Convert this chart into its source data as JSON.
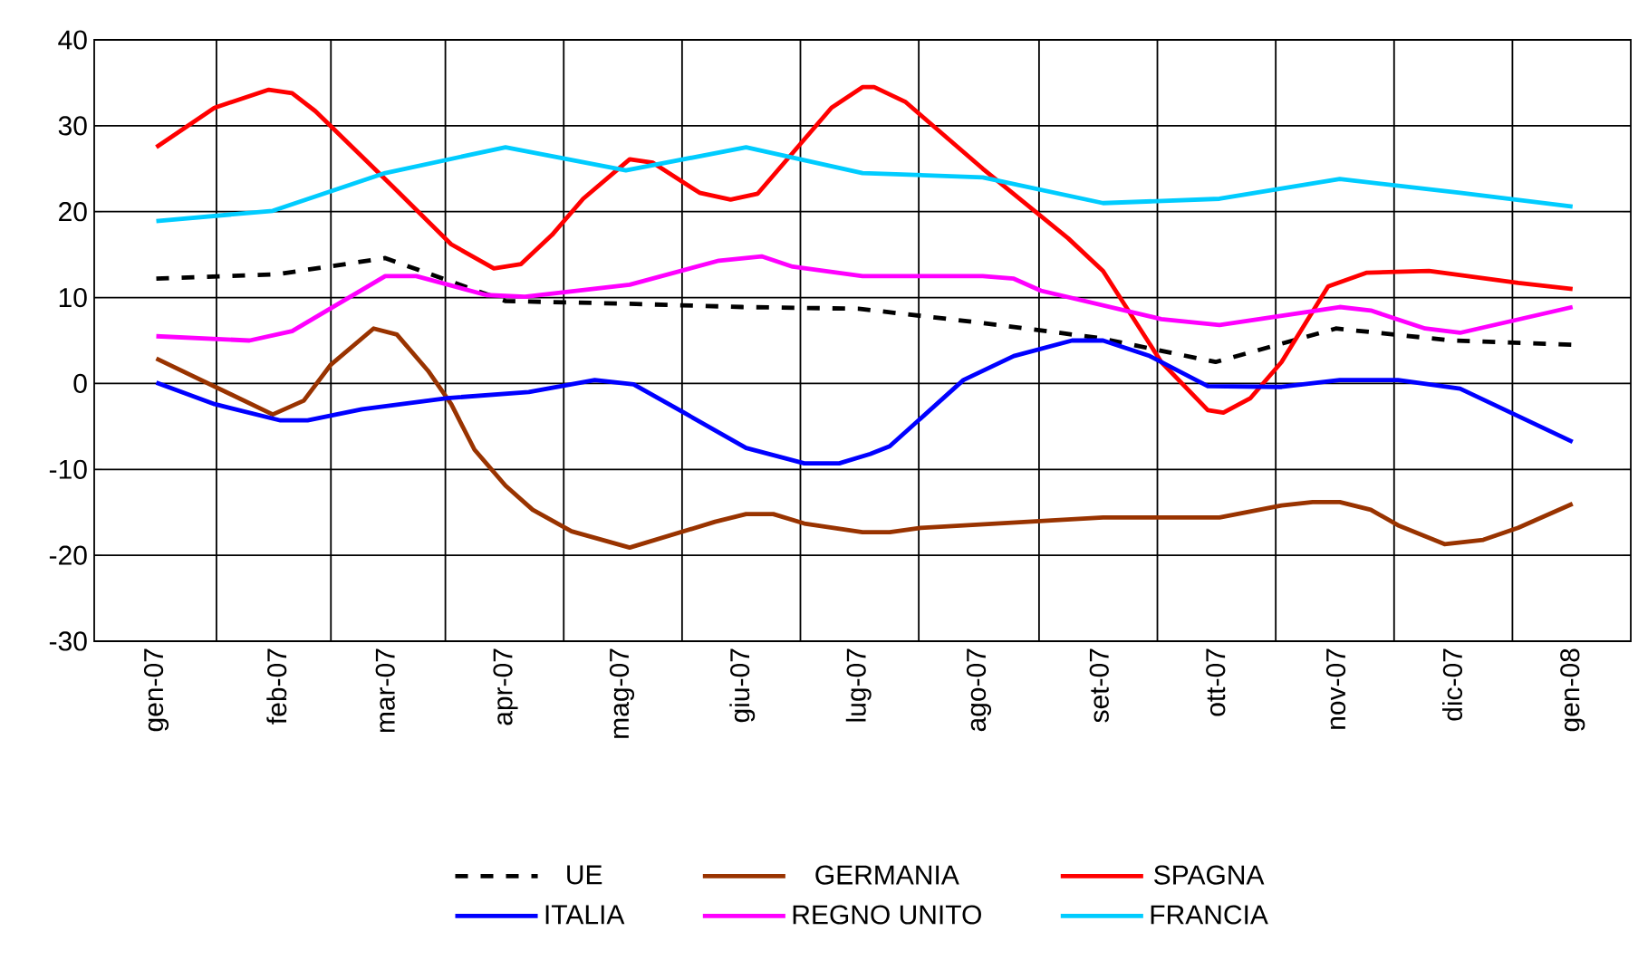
{
  "chart_data": {
    "type": "line",
    "xlim": [
      "2006-12-16",
      "2008-01-16"
    ],
    "ylim": [
      -30,
      40
    ],
    "xticks": [
      {
        "value": "2007-01-01",
        "label": "gen-07"
      },
      {
        "value": "2007-02-01",
        "label": "feb-07"
      },
      {
        "value": "2007-03-01",
        "label": "mar-07"
      },
      {
        "value": "2007-04-01",
        "label": "apr-07"
      },
      {
        "value": "2007-05-01",
        "label": "mag-07"
      },
      {
        "value": "2007-06-01",
        "label": "giu-07"
      },
      {
        "value": "2007-07-01",
        "label": "lug-07"
      },
      {
        "value": "2007-08-01",
        "label": "ago-07"
      },
      {
        "value": "2007-09-01",
        "label": "set-07"
      },
      {
        "value": "2007-10-01",
        "label": "ott-07"
      },
      {
        "value": "2007-11-01",
        "label": "nov-07"
      },
      {
        "value": "2007-12-01",
        "label": "dic-07"
      },
      {
        "value": "2008-01-01",
        "label": "gen-08"
      }
    ],
    "yticks": [
      -30,
      -20,
      -10,
      0,
      10,
      20,
      30,
      40
    ],
    "grid": true,
    "legend": "bottom",
    "marker": "none",
    "series": [
      {
        "name": "UE",
        "color": "#000000",
        "line_style": "dashed",
        "x": [
          "2007-01-01",
          "2007-02-01",
          "2007-03-01",
          "2007-04-01",
          "2007-05-01",
          "2007-06-01",
          "2007-07-01",
          "2007-08-01",
          "2007-09-01",
          "2007-10-01",
          "2007-11-01",
          "2007-12-01",
          "2008-01-01"
        ],
        "values": [
          12.2,
          12.7,
          14.6,
          9.6,
          9.3,
          8.9,
          8.7,
          7.1,
          5.3,
          2.5,
          6.4,
          5.0,
          4.5
        ]
      },
      {
        "name": "GERMANIA",
        "color": "#993300",
        "x": [
          "2007-01-01",
          "2007-01-31",
          "2007-02-08",
          "2007-02-15",
          "2007-02-26",
          "2007-03-04",
          "2007-03-12",
          "2007-03-18",
          "2007-03-24",
          "2007-04-01",
          "2007-04-08",
          "2007-04-18",
          "2007-05-03",
          "2007-05-25",
          "2007-06-02",
          "2007-06-09",
          "2007-06-17",
          "2007-07-02",
          "2007-07-09",
          "2007-07-17",
          "2007-09-02",
          "2007-10-02",
          "2007-10-18",
          "2007-10-26",
          "2007-11-02",
          "2007-11-10",
          "2007-11-17",
          "2007-11-29",
          "2007-12-09",
          "2007-12-18",
          "2008-01-01"
        ],
        "values": [
          2.9,
          -3.6,
          -2.0,
          2.2,
          6.4,
          5.7,
          1.5,
          -2.4,
          -7.7,
          -11.9,
          -14.7,
          -17.2,
          -19.1,
          -16.1,
          -15.2,
          -15.2,
          -16.3,
          -17.3,
          -17.3,
          -16.8,
          -15.6,
          -15.6,
          -14.2,
          -13.8,
          -13.8,
          -14.7,
          -16.5,
          -18.7,
          -18.2,
          -16.8,
          -14.0
        ]
      },
      {
        "name": "SPAGNA",
        "color": "#ff0000",
        "x": [
          "2007-01-01",
          "2007-01-16",
          "2007-01-30",
          "2007-02-05",
          "2007-02-11",
          "2007-03-03",
          "2007-03-18",
          "2007-03-29",
          "2007-04-05",
          "2007-04-13",
          "2007-04-21",
          "2007-05-03",
          "2007-05-09",
          "2007-05-21",
          "2007-05-29",
          "2007-06-05",
          "2007-06-24",
          "2007-07-02",
          "2007-07-05",
          "2007-07-13",
          "2007-08-02",
          "2007-08-24",
          "2007-09-02",
          "2007-09-17",
          "2007-09-29",
          "2007-10-03",
          "2007-10-10",
          "2007-10-18",
          "2007-10-30",
          "2007-11-09",
          "2007-11-25",
          "2007-12-18",
          "2008-01-01"
        ],
        "values": [
          27.5,
          32.1,
          34.2,
          33.8,
          31.7,
          22.9,
          16.2,
          13.4,
          13.9,
          17.3,
          21.5,
          26.1,
          25.7,
          22.2,
          21.4,
          22.1,
          32.1,
          34.5,
          34.5,
          32.8,
          25.0,
          16.9,
          13.1,
          2.5,
          -3.1,
          -3.4,
          -1.7,
          2.5,
          11.3,
          12.9,
          13.1,
          11.7,
          11.0
        ]
      },
      {
        "name": "ITALIA",
        "color": "#0000ff",
        "x": [
          "2007-01-01",
          "2007-01-16",
          "2007-02-02",
          "2007-02-09",
          "2007-02-23",
          "2007-03-17",
          "2007-04-07",
          "2007-04-24",
          "2007-05-04",
          "2007-05-17",
          "2007-06-02",
          "2007-06-17",
          "2007-06-26",
          "2007-07-04",
          "2007-07-09",
          "2007-07-28",
          "2007-08-10",
          "2007-08-25",
          "2007-09-02",
          "2007-09-14",
          "2007-09-29",
          "2007-10-18",
          "2007-11-02",
          "2007-11-17",
          "2007-12-03",
          "2008-01-01"
        ],
        "values": [
          0.1,
          -2.4,
          -4.3,
          -4.3,
          -3.0,
          -1.7,
          -1.0,
          0.4,
          -0.1,
          -3.4,
          -7.5,
          -9.3,
          -9.3,
          -8.2,
          -7.3,
          0.4,
          3.2,
          5.0,
          5.0,
          3.2,
          -0.3,
          -0.4,
          0.4,
          0.4,
          -0.6,
          -6.8
        ]
      },
      {
        "name": "REGNO UNITO",
        "color": "#ff00ff",
        "x": [
          "2007-01-01",
          "2007-01-25",
          "2007-02-05",
          "2007-03-01",
          "2007-03-09",
          "2007-03-27",
          "2007-04-06",
          "2007-05-03",
          "2007-05-26",
          "2007-06-06",
          "2007-06-14",
          "2007-07-02",
          "2007-08-02",
          "2007-08-10",
          "2007-08-17",
          "2007-09-17",
          "2007-10-02",
          "2007-11-02",
          "2007-11-10",
          "2007-11-24",
          "2007-12-03",
          "2008-01-01"
        ],
        "values": [
          5.5,
          5.0,
          6.1,
          12.5,
          12.5,
          10.3,
          10.1,
          11.5,
          14.3,
          14.8,
          13.6,
          12.5,
          12.5,
          12.2,
          10.8,
          7.5,
          6.8,
          8.9,
          8.5,
          6.4,
          5.9,
          8.9
        ]
      },
      {
        "name": "FRANCIA",
        "color": "#00ccff",
        "x": [
          "2007-01-01",
          "2007-01-31",
          "2007-03-01",
          "2007-04-01",
          "2007-05-02",
          "2007-06-02",
          "2007-07-02",
          "2007-08-02",
          "2007-09-02",
          "2007-10-02",
          "2007-11-02",
          "2007-12-03",
          "2008-01-01"
        ],
        "values": [
          18.9,
          20.1,
          24.5,
          27.5,
          24.8,
          27.5,
          24.5,
          24.0,
          21.0,
          21.5,
          23.8,
          22.2,
          20.6
        ]
      }
    ]
  }
}
